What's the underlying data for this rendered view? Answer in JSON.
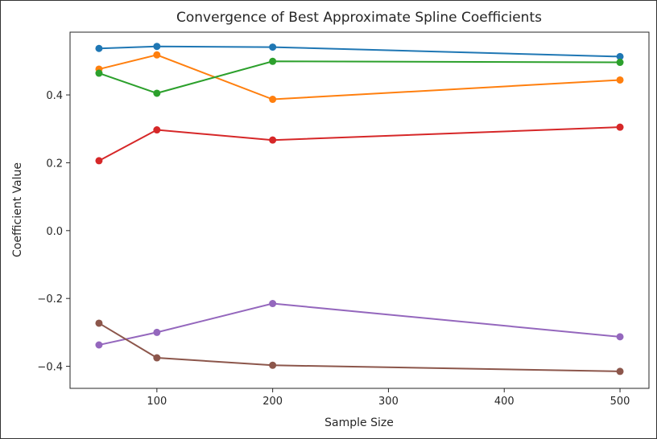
{
  "chart_data": {
    "type": "line",
    "title": "Convergence of Best Approximate Spline Coefficients",
    "xlabel": "Sample Size",
    "ylabel": "Coefficient Value",
    "x": [
      50,
      100,
      200,
      500
    ],
    "xlim": [
      25,
      525
    ],
    "ylim": [
      -0.465,
      0.585
    ],
    "xticks": [
      100,
      200,
      300,
      400,
      500
    ],
    "yticks": [
      -0.4,
      -0.2,
      0.0,
      0.2,
      0.4
    ],
    "xtick_labels": [
      "100",
      "200",
      "300",
      "400",
      "500"
    ],
    "ytick_labels": [
      "−0.4",
      "−0.2",
      "0.0",
      "0.2",
      "0.4"
    ],
    "grid": false,
    "series": [
      {
        "color": "#1f77b4",
        "values": [
          0.537,
          0.543,
          0.541,
          0.513
        ]
      },
      {
        "color": "#ff7f0e",
        "values": [
          0.476,
          0.518,
          0.387,
          0.444
        ]
      },
      {
        "color": "#2ca02c",
        "values": [
          0.464,
          0.405,
          0.499,
          0.496
        ]
      },
      {
        "color": "#d62728",
        "values": [
          0.206,
          0.297,
          0.267,
          0.305
        ]
      },
      {
        "color": "#9467bd",
        "values": [
          -0.337,
          -0.3,
          -0.215,
          -0.313
        ]
      },
      {
        "color": "#8c564b",
        "values": [
          -0.273,
          -0.375,
          -0.397,
          -0.415
        ]
      }
    ]
  }
}
